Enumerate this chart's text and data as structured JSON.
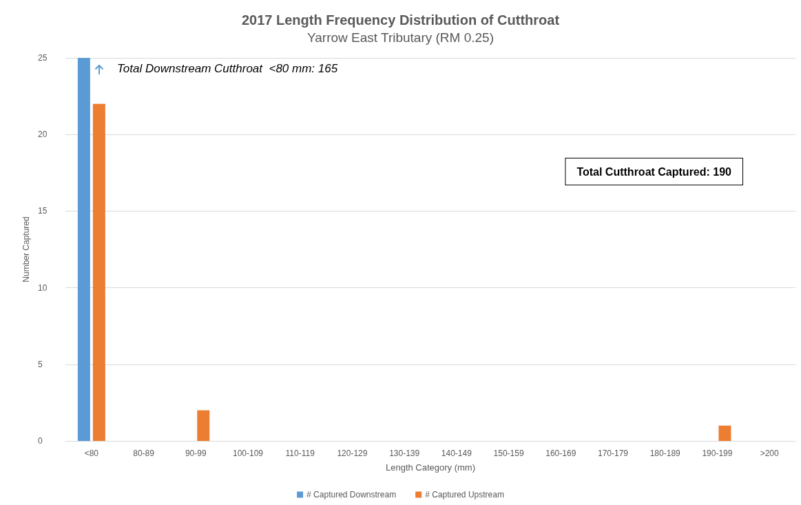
{
  "chart_data": {
    "type": "bar",
    "title": "2017 Length Frequency Distribution of Cutthroat",
    "subtitle": "Yarrow East Tributary (RM 0.25)",
    "xlabel": "Length Category (mm)",
    "ylabel": "Number Captured",
    "categories": [
      "<80",
      "80-89",
      "90-99",
      "100-109",
      "110-119",
      "120-129",
      "130-139",
      "140-149",
      "150-159",
      "160-169",
      "170-179",
      "180-189",
      "190-199",
      ">200"
    ],
    "series": [
      {
        "name": "# Captured Downstream",
        "color": "#5b9bd5",
        "values": [
          25,
          0,
          0,
          0,
          0,
          0,
          0,
          0,
          0,
          0,
          0,
          0,
          0,
          0
        ]
      },
      {
        "name": "# Captured Upstream",
        "color": "#ed7d31",
        "values": [
          22,
          0,
          2,
          0,
          0,
          0,
          0,
          0,
          0,
          0,
          0,
          0,
          1,
          0
        ]
      }
    ],
    "ylim": [
      0,
      25
    ],
    "yticks": [
      0,
      5,
      10,
      15,
      20,
      25
    ],
    "grid": "y",
    "legend": "bottom",
    "annotations": [
      "Total Downstream Cutthroat  <80 mm: 165",
      "Total Cutthroat Captured: 190"
    ]
  }
}
